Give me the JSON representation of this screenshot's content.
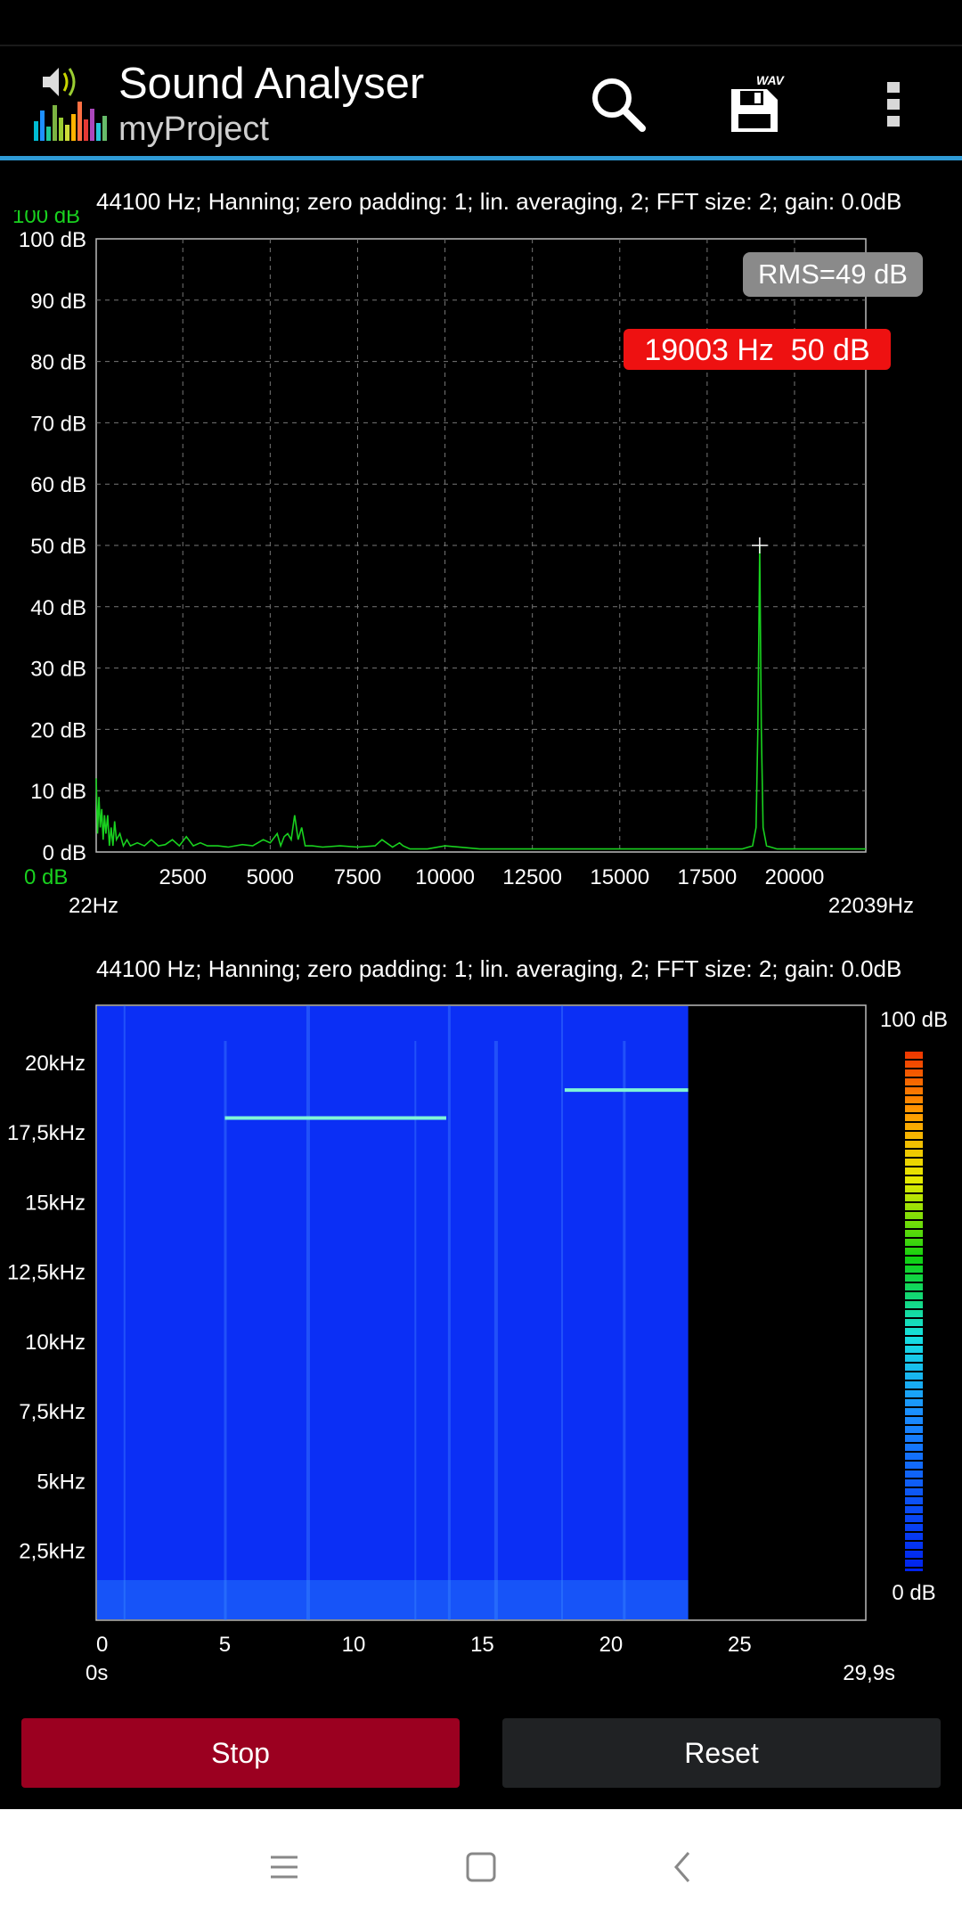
{
  "app": {
    "title": "Sound Analyser",
    "subtitle": "myProject",
    "icons": {
      "logo": "speaker-equalizer-icon",
      "search": "search-icon",
      "save": "save-wav-icon",
      "overflow": "more-vert-icon"
    },
    "save_badge": "WAV"
  },
  "spectrum": {
    "info": "44100 Hz; Hanning; zero padding: 1; lin. averaging, 2; FFT size: 2; gain: 0.0dB",
    "top_label": "100 dB",
    "bottom_label": "0 dB",
    "rms_label": "RMS=49 dB",
    "peak_label": "19003 Hz  50 dB",
    "x_min_label": "22Hz",
    "x_max_label": "22039Hz",
    "colors": {
      "line": "#19d11f",
      "peak_bg": "#ee1111",
      "rms_bg": "#8a8a8a",
      "green_label": "#19d11f"
    }
  },
  "chart_data": [
    {
      "type": "line",
      "title": "",
      "xlabel": "",
      "ylabel": "",
      "xlim": [
        22,
        22039
      ],
      "ylim": [
        0,
        100
      ],
      "x_ticks": [
        "2500",
        "5000",
        "7500",
        "10000",
        "12500",
        "15000",
        "17500",
        "20000"
      ],
      "x_tick_values": [
        2500,
        5000,
        7500,
        10000,
        12500,
        15000,
        17500,
        20000
      ],
      "y_ticks": [
        "0 dB",
        "10 dB",
        "20 dB",
        "30 dB",
        "40 dB",
        "50 dB",
        "60 dB",
        "70 dB",
        "80 dB",
        "90 dB",
        "100 dB"
      ],
      "y_tick_values": [
        0,
        10,
        20,
        30,
        40,
        50,
        60,
        70,
        80,
        90,
        100
      ],
      "grid": true,
      "series": [
        {
          "x": [
            22,
            60,
            100,
            140,
            180,
            220,
            260,
            300,
            350,
            400,
            450,
            500,
            550,
            600,
            700,
            800,
            900,
            1000,
            1200,
            1400,
            1600,
            1800,
            2000,
            2200,
            2400,
            2600,
            2800,
            3000,
            3200,
            3500,
            3800,
            4000,
            4200,
            4500,
            4800,
            5000,
            5200,
            5300,
            5400,
            5500,
            5600,
            5700,
            5800,
            5900,
            6000,
            6200,
            6500,
            7000,
            7500,
            8000,
            8200,
            8500,
            8700,
            8800,
            9000,
            9500,
            10000,
            11000,
            12000,
            13000,
            14000,
            15000,
            16000,
            17000,
            18000,
            18500,
            18800,
            18900,
            18950,
            19003,
            19050,
            19100,
            19200,
            19500,
            20000,
            21000,
            22039
          ],
          "values": [
            12,
            3,
            9,
            4,
            7,
            2,
            6,
            3,
            6,
            1,
            4,
            1,
            5,
            2,
            3,
            1,
            2,
            1,
            1.5,
            1,
            2,
            1,
            1.2,
            2,
            1,
            2.5,
            1,
            1.5,
            1,
            1,
            0.8,
            1,
            1.2,
            1,
            2,
            1.5,
            3,
            1,
            2.5,
            3,
            2,
            6,
            2,
            4,
            1,
            1,
            0.8,
            1,
            0.8,
            1,
            2,
            0.8,
            1.5,
            1,
            0.5,
            0.5,
            1,
            0.5,
            0.5,
            0.5,
            0.5,
            0.5,
            0.5,
            0.5,
            0.5,
            0.5,
            1,
            4,
            20,
            50,
            20,
            4,
            1,
            0.5,
            0.5,
            0.5,
            0.5
          ]
        }
      ]
    },
    {
      "type": "heatmap",
      "title": "",
      "xlabel": "",
      "ylabel": "",
      "xlim": [
        0,
        29.9
      ],
      "ylim": [
        0,
        22039
      ],
      "x_ticks": [
        "0",
        "5",
        "10",
        "15",
        "20",
        "25"
      ],
      "x_tick_values": [
        0,
        5,
        10,
        15,
        20,
        25
      ],
      "y_ticks": [
        "2,5kHz",
        "5kHz",
        "7,5kHz",
        "10kHz",
        "12,5kHz",
        "15kHz",
        "17,5kHz",
        "20kHz"
      ],
      "y_tick_values": [
        2500,
        5000,
        7500,
        10000,
        12500,
        15000,
        17500,
        20000
      ],
      "x_min_label": "0s",
      "x_max_label": "29,9s",
      "recorded_until": 23,
      "tones": [
        {
          "t_start": 5,
          "t_end": 13.6,
          "freq": 18000
        },
        {
          "t_start": 18.2,
          "t_end": 23,
          "freq": 19000
        }
      ],
      "colorbar": {
        "top": "100 dB",
        "bottom": "0 dB"
      },
      "colors": {
        "background": "#0b2ff5",
        "tone": "#7ff5d8"
      }
    }
  ],
  "controls": {
    "stop_label": "Stop",
    "reset_label": "Reset"
  },
  "nav": {
    "icons": [
      "menu-icon",
      "home-icon",
      "back-icon"
    ]
  }
}
